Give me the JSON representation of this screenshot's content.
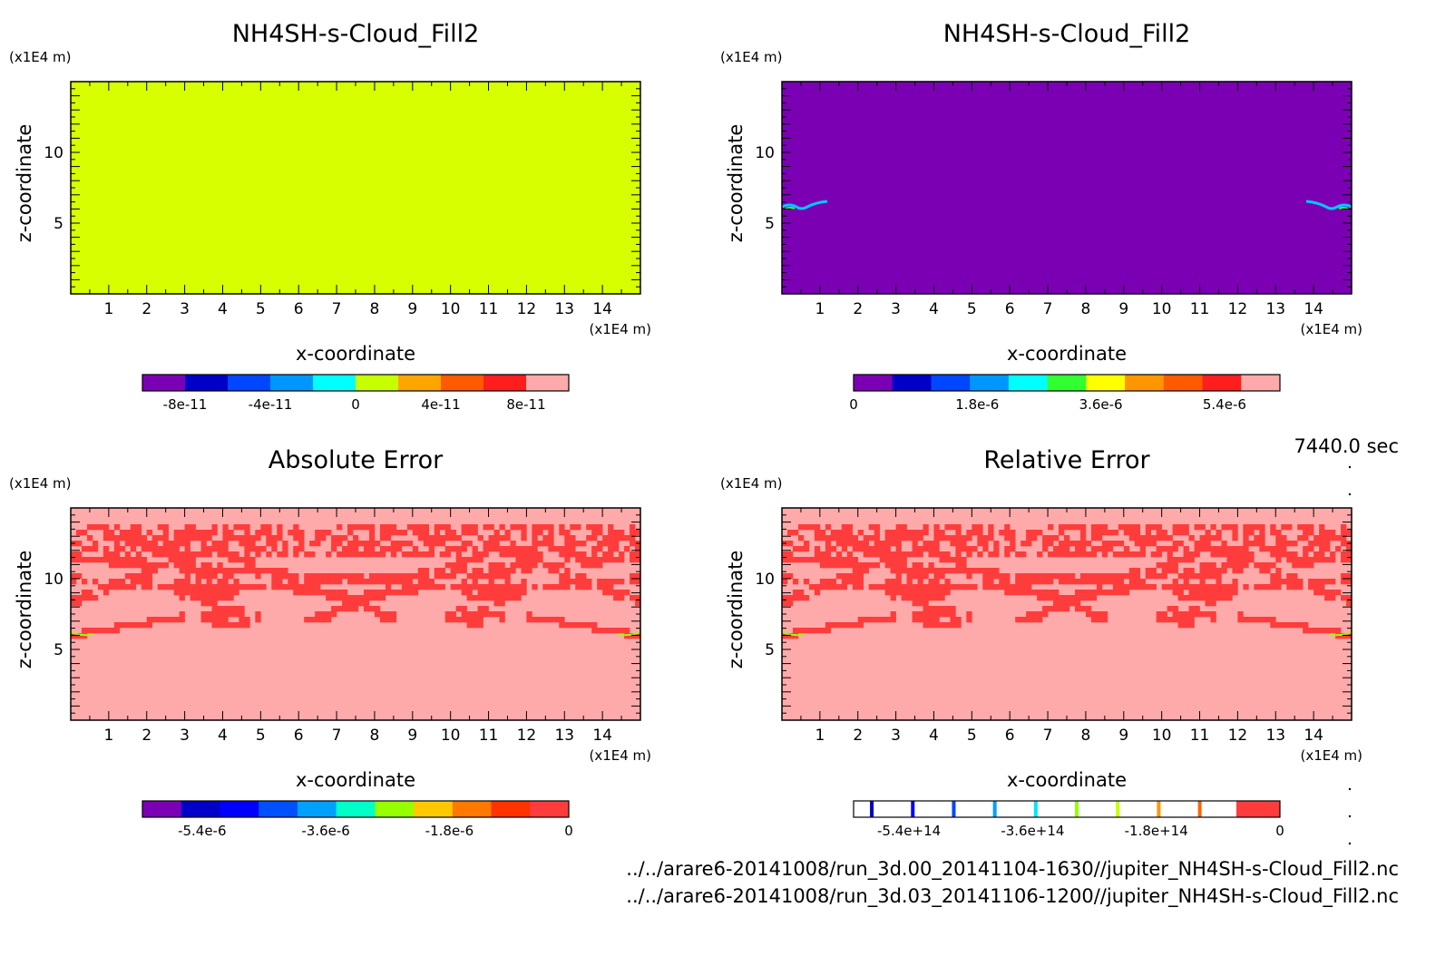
{
  "time_label": "7440.0 sec",
  "file_lines": [
    "../../arare6-20141008/run_3d.00_20141104-1630//jupiter_NH4SH-s-Cloud_Fill2.nc",
    "../../arare6-20141008/run_3d.03_20141106-1200//jupiter_NH4SH-s-Cloud_Fill2.nc"
  ],
  "chart_data": [
    {
      "type": "heatmap",
      "title": "NH4SH-s-Cloud_Fill2",
      "xlabel": "x-coordinate",
      "ylabel": "z-coordinate",
      "x_unit": "(x1E4 m)",
      "y_unit": "(x1E4 m)",
      "x_ticks": [
        "1",
        "2",
        "3",
        "4",
        "5",
        "6",
        "7",
        "8",
        "9",
        "10",
        "11",
        "12",
        "13",
        "14"
      ],
      "y_ticks": [
        "5",
        "10"
      ],
      "xlim": [
        0,
        15
      ],
      "ylim": [
        0,
        15
      ],
      "field": "uniform",
      "fill_color": "#d7ff00",
      "colorbar": {
        "colors": [
          "#7b00b4",
          "#0000c8",
          "#0046ff",
          "#0096ff",
          "#00ffff",
          "#c8ff00",
          "#ffa500",
          "#ff5a00",
          "#ff1e1e",
          "#ffaaaa"
        ],
        "labels": [
          "-8e-11",
          "-4e-11",
          "0",
          "4e-11",
          "8e-11"
        ]
      }
    },
    {
      "type": "heatmap",
      "title": "NH4SH-s-Cloud_Fill2",
      "xlabel": "x-coordinate",
      "ylabel": "z-coordinate",
      "x_unit": "(x1E4 m)",
      "y_unit": "(x1E4 m)",
      "x_ticks": [
        "1",
        "2",
        "3",
        "4",
        "5",
        "6",
        "7",
        "8",
        "9",
        "10",
        "11",
        "12",
        "13",
        "14"
      ],
      "y_ticks": [
        "5",
        "10"
      ],
      "xlim": [
        0,
        15
      ],
      "ylim": [
        0,
        15
      ],
      "field": "edge-features",
      "fill_color": "#7b00b4",
      "colorbar": {
        "colors": [
          "#7b00b4",
          "#0000c8",
          "#0046ff",
          "#0096ff",
          "#00ffff",
          "#32ff32",
          "#ffff00",
          "#ff9600",
          "#ff5a00",
          "#ff1e1e",
          "#ffaaaa"
        ],
        "labels": [
          "0",
          "1.8e-6",
          "3.6e-6",
          "5.4e-6"
        ]
      }
    },
    {
      "type": "heatmap",
      "title": "Absolute Error",
      "xlabel": "x-coordinate",
      "ylabel": "z-coordinate",
      "x_unit": "(x1E4 m)",
      "y_unit": "(x1E4 m)",
      "x_ticks": [
        "1",
        "2",
        "3",
        "4",
        "5",
        "6",
        "7",
        "8",
        "9",
        "10",
        "11",
        "12",
        "13",
        "14"
      ],
      "y_ticks": [
        "5",
        "10"
      ],
      "xlim": [
        0,
        15
      ],
      "ylim": [
        0,
        15
      ],
      "field": "error-pattern",
      "fill_color": "#ffaaaa",
      "pattern_color": "#ff3c3c",
      "colorbar": {
        "colors": [
          "#7b00b4",
          "#0000c8",
          "#0000ff",
          "#0050ff",
          "#00a0ff",
          "#00ffc8",
          "#96ff00",
          "#ffc800",
          "#ff7800",
          "#ff3200",
          "#ff3c3c"
        ],
        "labels": [
          "-5.4e-6",
          "-3.6e-6",
          "-1.8e-6",
          "0"
        ]
      }
    },
    {
      "type": "heatmap",
      "title": "Relative Error",
      "xlabel": "x-coordinate",
      "ylabel": "z-coordinate",
      "x_unit": "(x1E4 m)",
      "y_unit": "(x1E4 m)",
      "x_ticks": [
        "1",
        "2",
        "3",
        "4",
        "5",
        "6",
        "7",
        "8",
        "9",
        "10",
        "11",
        "12",
        "13",
        "14"
      ],
      "y_ticks": [
        "5",
        "10"
      ],
      "xlim": [
        0,
        15
      ],
      "ylim": [
        0,
        15
      ],
      "field": "error-pattern",
      "fill_color": "#ffaaaa",
      "pattern_color": "#ff3c3c",
      "colorbar": {
        "style": "ticks",
        "tick_colors": [
          "#0000c8",
          "#0000ff",
          "#0046ff",
          "#00a0ff",
          "#00e6ff",
          "#96ff00",
          "#c8ff00",
          "#ff9600",
          "#ff6400"
        ],
        "end_color": "#ff3c3c",
        "labels": [
          "-5.4e+14",
          "-3.6e+14",
          "-1.8e+14",
          "0"
        ]
      }
    }
  ]
}
